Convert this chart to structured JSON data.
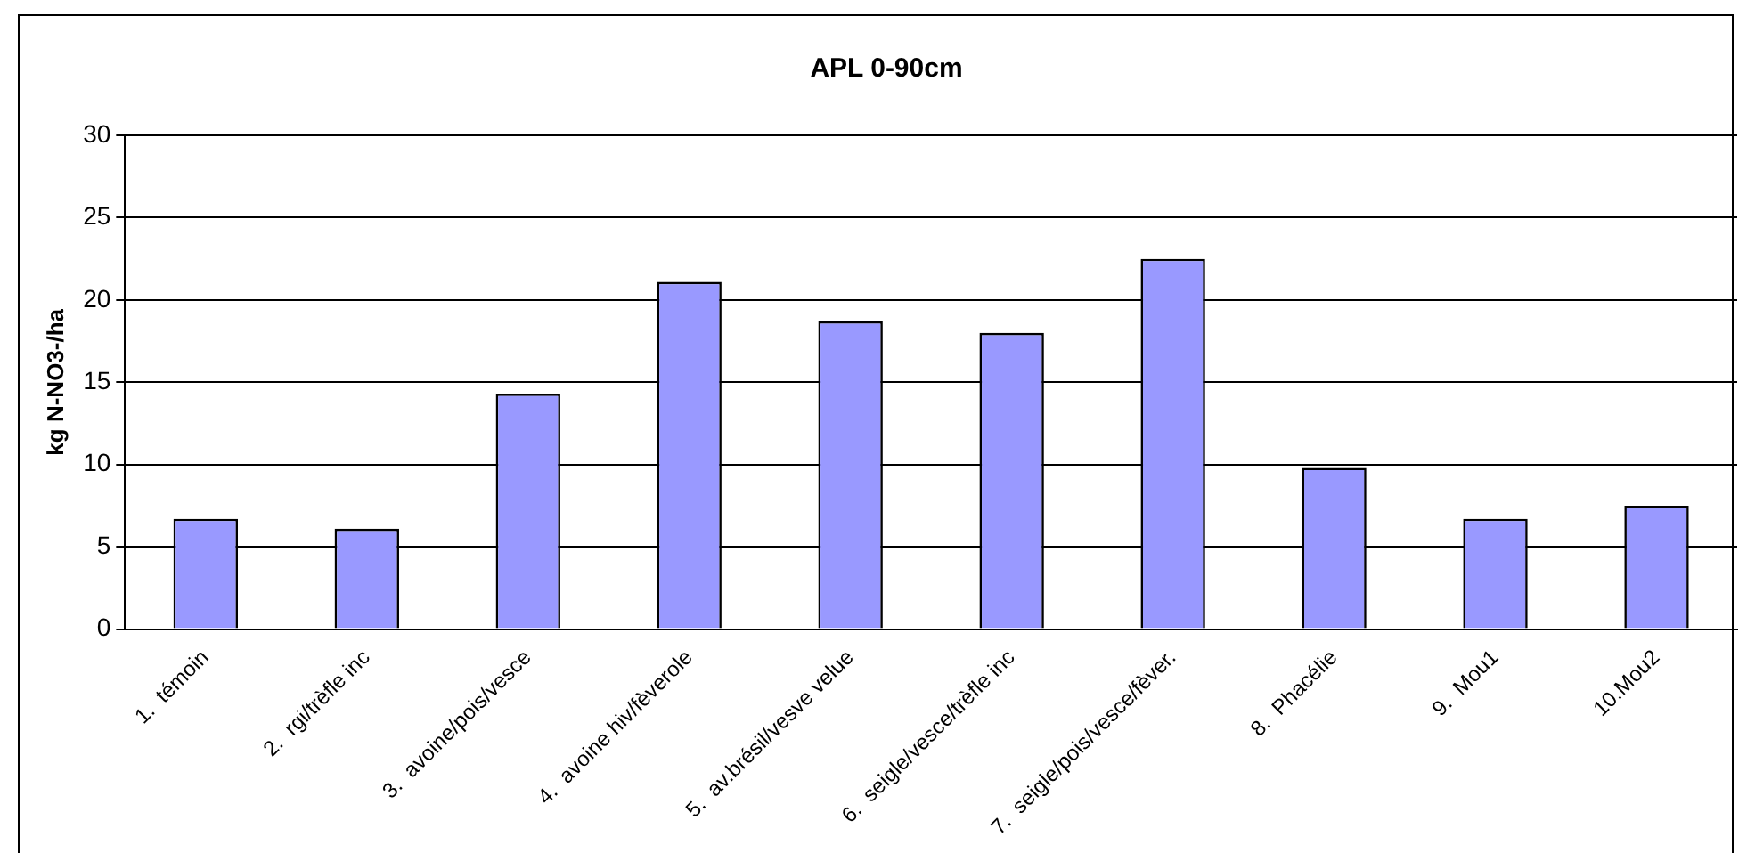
{
  "chart_data": {
    "type": "bar",
    "title": "APL 0-90cm",
    "ylabel": "kg N-NO3-/ha",
    "categories": [
      "1.  témoin",
      "2.  rgi/trèfle inc",
      "3.  avoine/pois/vesce",
      "4.  avoine hiv/fèverole",
      "5.  av.brésil/vesve velue",
      "6.  seigle/vesce/trèfle inc",
      "7.  seigle/pois/vesce/fèver.",
      "8.  Phacélie",
      "9.  Mou1",
      "10.Mou2"
    ],
    "values": [
      6.7,
      6.1,
      14.3,
      21.1,
      18.7,
      18.0,
      22.5,
      9.8,
      6.7,
      7.5
    ],
    "color": "#9999ff",
    "ylim": [
      0,
      30
    ],
    "yticks": [
      0,
      5,
      10,
      15,
      20,
      25,
      30
    ],
    "grid": "y"
  }
}
